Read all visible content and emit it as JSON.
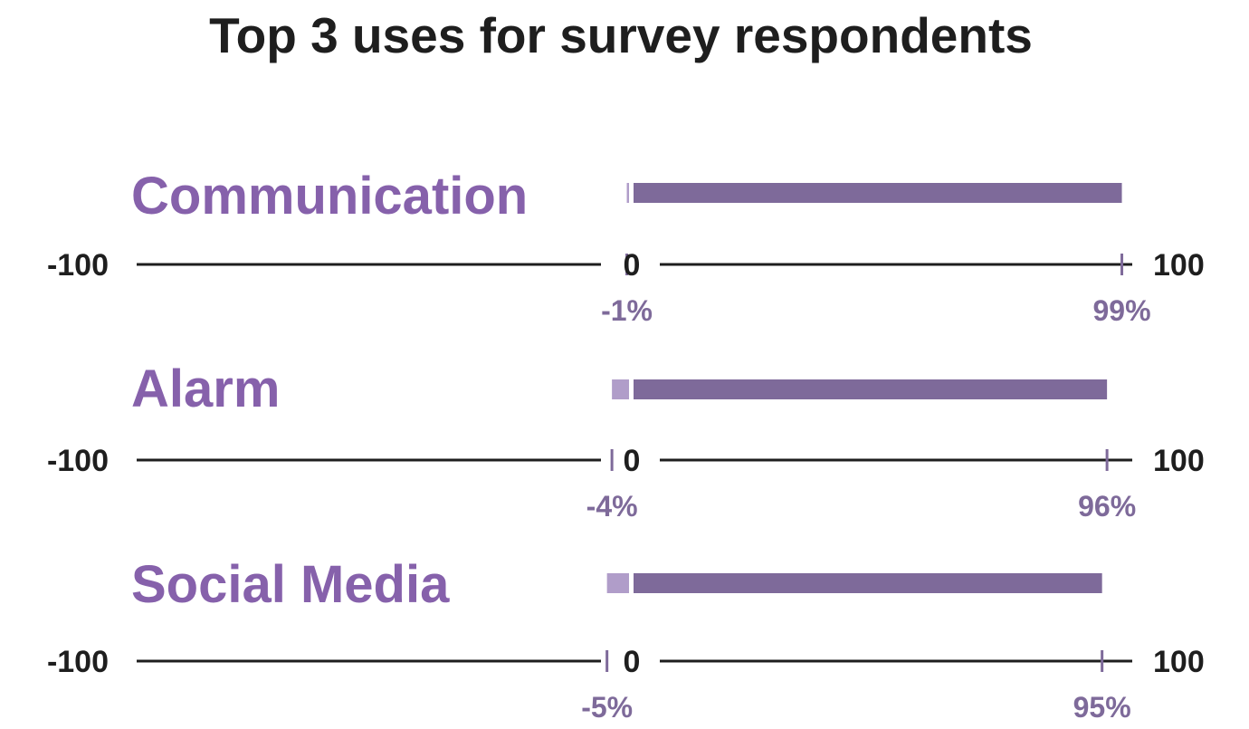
{
  "colors": {
    "text": "#1e1e1e",
    "label": "#8661ab",
    "bar_positive": "#7e6a9a",
    "bar_negative": "#b09dc9",
    "pct": "#7e6a9a",
    "axis": "#1e1e1e"
  },
  "chart_data": {
    "type": "bar",
    "title": "Top 3 uses for survey respondents",
    "xlim": [
      -100,
      100
    ],
    "axis_tick_labels": {
      "min": "-100",
      "zero": "0",
      "max": "100"
    },
    "categories": [
      "Communication",
      "Alarm",
      "Social Media"
    ],
    "series": [
      {
        "values": [
          -1,
          -4,
          -5
        ]
      },
      {
        "values": [
          99,
          96,
          95
        ]
      }
    ],
    "value_labels": {
      "negative": [
        "-1%",
        "-4%",
        "-5%"
      ],
      "positive": [
        "99%",
        "96%",
        "95%"
      ]
    }
  }
}
